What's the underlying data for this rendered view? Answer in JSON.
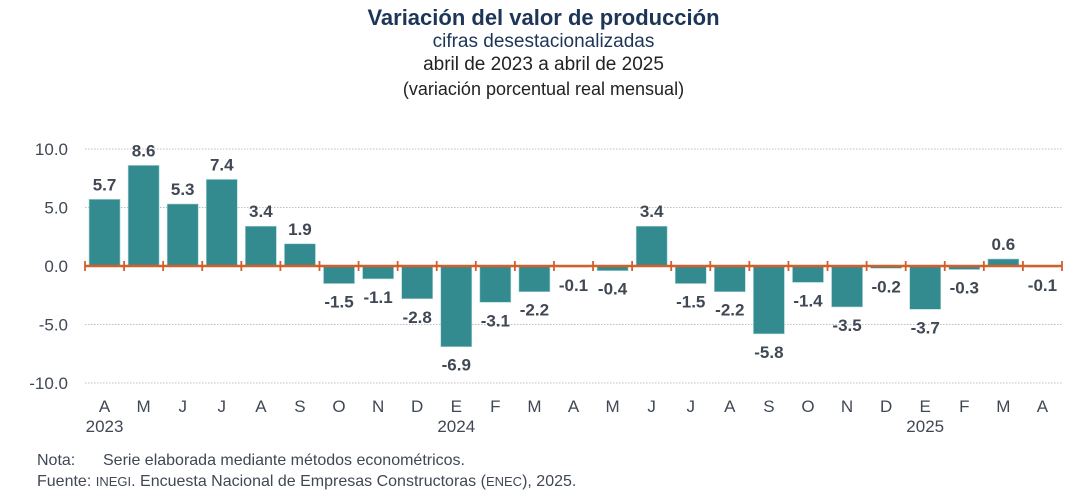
{
  "chart_data": {
    "type": "bar",
    "title": "Variación del valor de producción",
    "subtitle_lines": [
      "cifras desestacionalizadas",
      "abril de 2023 a abril de 2025",
      "(variación porcentual real mensual)"
    ],
    "xlabel": "",
    "ylabel": "",
    "ylim": [
      -10,
      10
    ],
    "yticks": [
      10,
      5,
      0,
      -5,
      -10
    ],
    "ytick_labels": [
      "10.0",
      "5.0",
      "0.0",
      "-5.0",
      "-10.0"
    ],
    "grid": true,
    "legend": "none",
    "categories": [
      "A",
      "M",
      "J",
      "J",
      "A",
      "S",
      "O",
      "N",
      "D",
      "E",
      "F",
      "M",
      "A",
      "M",
      "J",
      "J",
      "A",
      "S",
      "O",
      "N",
      "D",
      "E",
      "F",
      "M",
      "A"
    ],
    "year_labels": [
      {
        "index": 0,
        "label": "2023"
      },
      {
        "index": 9,
        "label": "2024"
      },
      {
        "index": 21,
        "label": "2025"
      }
    ],
    "values": [
      5.7,
      8.6,
      5.3,
      7.4,
      3.4,
      1.9,
      -1.5,
      -1.1,
      -2.8,
      -6.9,
      -3.1,
      -2.2,
      -0.1,
      -0.4,
      3.4,
      -1.5,
      -2.2,
      -5.8,
      -1.4,
      -3.5,
      -0.2,
      -3.7,
      -0.3,
      0.6,
      -0.1
    ],
    "value_labels": [
      "5.7",
      "8.6",
      "5.3",
      "7.4",
      "3.4",
      "1.9",
      "-1.5",
      "-1.1",
      "-2.8",
      "-6.9",
      "-3.1",
      "-2.2",
      "-0.1",
      "-0.4",
      "3.4",
      "-1.5",
      "-2.2",
      "-5.8",
      "-1.4",
      "-3.5",
      "-0.2",
      "-3.7",
      "-0.3",
      "0.6",
      "-0.1"
    ],
    "colors": {
      "bar": "#338b8f",
      "axis": "#d35f2a",
      "grid": "#bfbfbf"
    }
  },
  "notes": {
    "nota_label": "Nota:",
    "nota_text": "Serie elaborada mediante métodos econométricos.",
    "fuente_label": "Fuente:",
    "fuente_org": "INEGI",
    "fuente_text_1": ". Encuesta Nacional de Empresas Constructoras (",
    "fuente_abbr": "ENEC",
    "fuente_text_2": "), 2025."
  }
}
